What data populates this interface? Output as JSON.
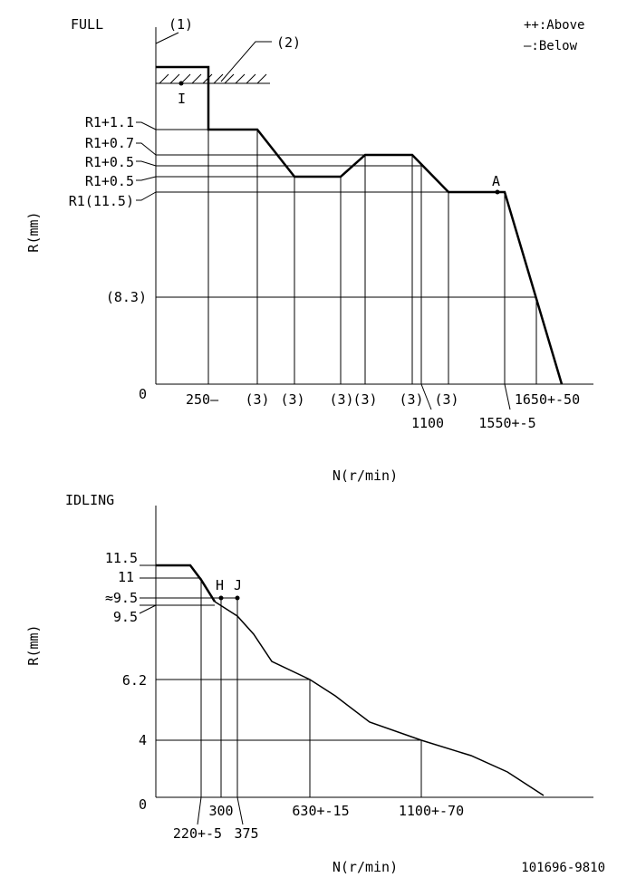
{
  "full": {
    "title": "FULL",
    "label_1": "(1)",
    "label_2": "(2)",
    "legend_above": "++:Above",
    "legend_below": "—:Below",
    "point_I": "I",
    "point_A": "A",
    "y_axis_label": "R(mm)",
    "x_axis_label": "N(r/min)",
    "y_labels": [
      "R1+1.1",
      "R1+0.7",
      "R1+0.5",
      "R1+0.5",
      "R1(11.5)",
      "(8.3)",
      "0"
    ],
    "x_labels": [
      "250—",
      "(3)",
      "(3)",
      "(3)",
      "(3)",
      "(3)",
      "(3)",
      "1100",
      "1550+-5",
      "1650+-50"
    ]
  },
  "idling": {
    "title": "IDLING",
    "y_axis_label": "R(mm)",
    "x_axis_label": "N(r/min)",
    "point_H": "H",
    "point_J": "J",
    "y_labels": [
      "11.5",
      "11",
      "≈9.5",
      "9.5",
      "6.2",
      "4",
      "0"
    ],
    "x_labels": [
      "220+-5",
      "300",
      "375",
      "630+-15",
      "1100+-70"
    ]
  },
  "doc_code": "101696-9810"
}
